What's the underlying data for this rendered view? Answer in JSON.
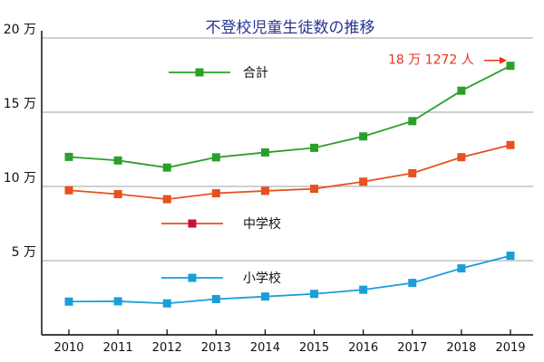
{
  "chart_data": {
    "type": "line",
    "title": "不登校児童生徒数の推移",
    "x": [
      "2010",
      "2011",
      "2012",
      "2013",
      "2014",
      "2015",
      "2016",
      "2017",
      "2018",
      "2019"
    ],
    "y_ticks": [
      {
        "value": 50000,
        "label": "5 万"
      },
      {
        "value": 100000,
        "label": "10 万"
      },
      {
        "value": 150000,
        "label": "15 万"
      },
      {
        "value": 200000,
        "label": "20 万"
      }
    ],
    "ylim": [
      0,
      200000
    ],
    "grid": "horizontal",
    "series": [
      {
        "name": "合計",
        "color": "#2aa02a",
        "marker_color": "#2aa02a",
        "values": [
          119900,
          117500,
          112700,
          119600,
          122900,
          126000,
          133700,
          144000,
          164500,
          181272
        ]
      },
      {
        "name": "中学校",
        "color": "#e8501e",
        "marker_color": "#cc0a4a",
        "values": [
          97400,
          94800,
          91400,
          95400,
          97000,
          98400,
          103200,
          108900,
          119700,
          127900
        ]
      },
      {
        "name": "小学校",
        "color": "#1a9ed9",
        "marker_color": "#1a9ed9",
        "values": [
          22400,
          22600,
          21200,
          24100,
          25800,
          27600,
          30400,
          35000,
          44800,
          53300
        ]
      }
    ],
    "annotation": {
      "text": "18 万 1272 人",
      "color": "#e8331e"
    }
  }
}
